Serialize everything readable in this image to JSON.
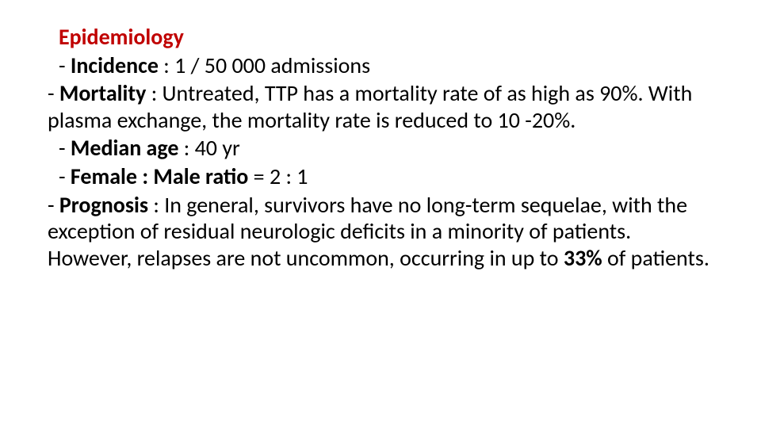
{
  "slide": {
    "title": "Epidemiology",
    "title_color": "#c00000",
    "text_color": "#000000",
    "background_color": "#ffffff",
    "font_family": "Calibri",
    "title_fontsize": 28,
    "body_fontsize": 28,
    "items": {
      "incidence": {
        "label": "Incidence",
        "sep": " : ",
        "value": "1 / 50 000 admissions"
      },
      "mortality": {
        "label": "Mortality",
        "sep": " : ",
        "value": "Untreated, TTP has a mortality rate of as high as 90%. With plasma exchange, the mortality rate is reduced to 10 -20%."
      },
      "median_age": {
        "label": "Median age",
        "sep": " : ",
        "value": "40 yr"
      },
      "sex_ratio": {
        "label": "Female : Male ratio",
        "sep": " = ",
        "value": "2 : 1"
      },
      "prognosis": {
        "label": "Prognosis",
        "sep": " : ",
        "value_pre": "In general, survivors have no long-term sequelae, with the exception of residual neurologic deficits in a minority of patients. However, relapses are not uncommon, occurring in up to ",
        "value_bold": "33%",
        "value_post": " of patients."
      }
    }
  }
}
